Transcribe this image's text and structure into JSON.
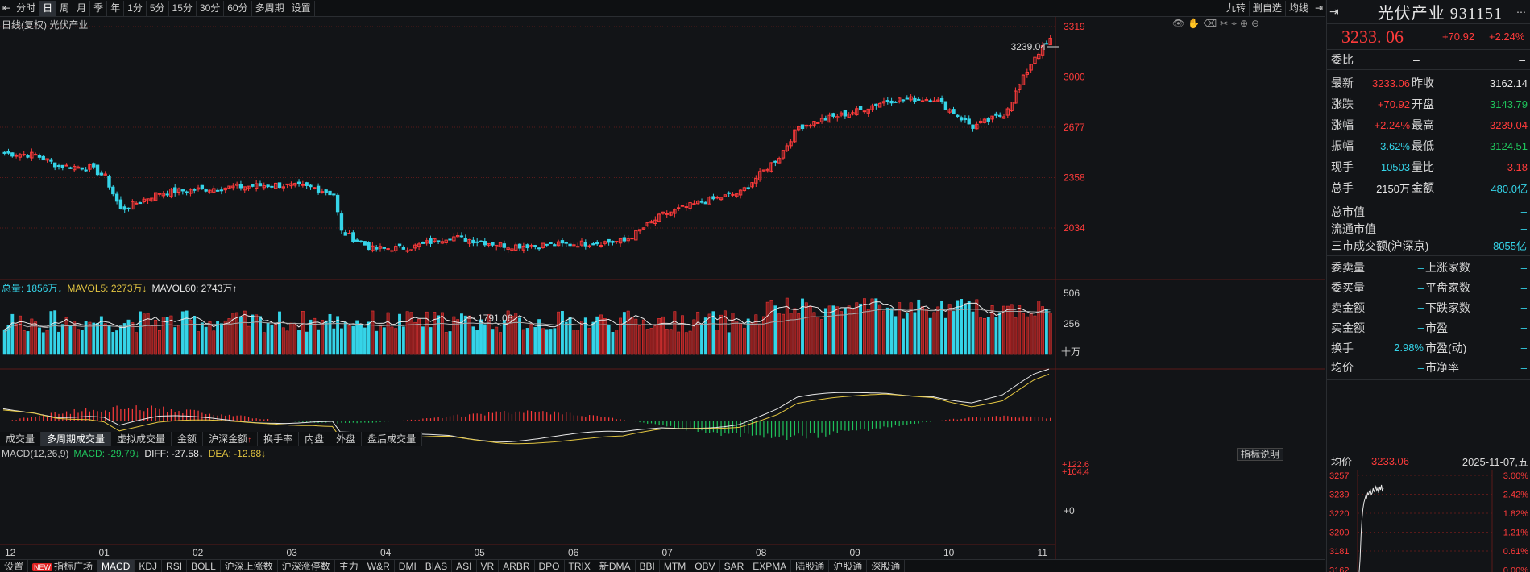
{
  "toolbar": {
    "periods": [
      "分时",
      "日",
      "周",
      "月",
      "季",
      "年",
      "1分",
      "5分",
      "15分",
      "30分",
      "60分",
      "多周期",
      "设置"
    ],
    "active_period": 1,
    "right_items": [
      "九转",
      "删自选",
      "均线"
    ]
  },
  "chart": {
    "title": "日线(复权)  光伏产业",
    "price_axis": [
      "3319",
      "3000",
      "2677",
      "2358",
      "2034"
    ],
    "high_label": "3239.04",
    "low_label": "1791.06",
    "month_labels": [
      "12",
      "01",
      "02",
      "03",
      "04",
      "05",
      "06",
      "07",
      "08",
      "09",
      "10",
      "11"
    ],
    "colors": {
      "up": "#ff3b3b",
      "down": "#35d4e8",
      "ma5": "#e8e8e8",
      "ma60": "#e2c541",
      "grid": "#5a1a1a"
    }
  },
  "volume": {
    "legend": [
      {
        "label": "总量: 1856万",
        "arrow": "↓",
        "color": "#35d4e8"
      },
      {
        "label": "MAVOL5: 2273万",
        "arrow": "↓",
        "color": "#e2c541"
      },
      {
        "label": "MAVOL60: 2743万",
        "arrow": "↑",
        "color": "#e8e8e8"
      }
    ],
    "axis": [
      "506",
      "256"
    ],
    "unit": "十万",
    "tabs": [
      "成交量",
      "多周期成交量",
      "虚拟成交量",
      "金额",
      "沪深金额",
      "换手率",
      "内盘",
      "外盘",
      "盘后成交量"
    ],
    "active_tab": 1,
    "tab_marker": "↑"
  },
  "macd": {
    "legend": [
      {
        "label": "MACD(12,26,9)",
        "color": "#c8c8c8"
      },
      {
        "label": "MACD: -29.79",
        "arrow": "↓",
        "color": "#1fc45c"
      },
      {
        "label": "DIFF: -27.58",
        "arrow": "↓",
        "color": "#e8e8e8"
      },
      {
        "label": "DEA: -12.68",
        "arrow": "↓",
        "color": "#e2c541"
      }
    ],
    "axis": [
      "122.6",
      "104.4",
      "0"
    ],
    "indicator_button": "指标说明"
  },
  "bottom_tabs": [
    "设置",
    "指标广场",
    "MACD",
    "KDJ",
    "RSI",
    "BOLL",
    "沪深上涨数",
    "沪深涨停数",
    "主力",
    "W&R",
    "DMI",
    "BIAS",
    "ASI",
    "VR",
    "ARBR",
    "DPO",
    "TRIX",
    "新DMA",
    "BBI",
    "MTM",
    "OBV",
    "SAR",
    "EXPMA",
    "陆股通",
    "沪股通",
    "深股通"
  ],
  "bottom_active": 2,
  "new_badge": "NEW",
  "panel": {
    "name": "光伏产业 931151",
    "last": "3233. 06",
    "change": "+70.92",
    "change_pct": "+2.24%",
    "weibi": {
      "k": "委比",
      "v": "–",
      "v2": "–"
    },
    "rows": [
      {
        "k": "最新",
        "v": "3233.06",
        "vc": "red",
        "k2": "昨收",
        "v2": "3162.14",
        "v2c": "white"
      },
      {
        "k": "涨跌",
        "v": "+70.92",
        "vc": "red",
        "k2": "开盘",
        "v2": "3143.79",
        "v2c": "green"
      },
      {
        "k": "涨幅",
        "v": "+2.24%",
        "vc": "red",
        "k2": "最高",
        "v2": "3239.04",
        "v2c": "red"
      },
      {
        "k": "振幅",
        "v": "3.62%",
        "vc": "cyan",
        "k2": "最低",
        "v2": "3124.51",
        "v2c": "green"
      },
      {
        "k": "现手",
        "v": "10503",
        "vc": "cyan",
        "k2": "量比",
        "v2": "3.18",
        "v2c": "red"
      },
      {
        "k": "总手",
        "v": "2150万",
        "vc": "white",
        "k2": "金额",
        "v2": "480.0亿",
        "v2c": "cyan"
      }
    ],
    "market": [
      {
        "k": "总市值",
        "v": "–"
      },
      {
        "k": "流通市值",
        "v": "–"
      },
      {
        "k": "三市成交额(沪深京)",
        "v": "8055亿"
      }
    ],
    "breadth": [
      {
        "k": "委卖量",
        "v": "–",
        "k2": "上涨家数",
        "v2": "–"
      },
      {
        "k": "委买量",
        "v": "–",
        "k2": "平盘家数",
        "v2": "–"
      },
      {
        "k": "卖金额",
        "v": "–",
        "k2": "下跌家数",
        "v2": "–"
      },
      {
        "k": "买金额",
        "v": "–",
        "k2": "市盈",
        "v2": "–"
      },
      {
        "k": "换手",
        "v": "2.98%",
        "k2": "市盈(动)",
        "v2": "–"
      },
      {
        "k": "均价",
        "v": "–",
        "k2": "市净率",
        "v2": "–"
      }
    ],
    "mini": {
      "price_label": "均价",
      "price": "3233.06",
      "date": "2025-11-07,五",
      "left_axis": [
        "3257",
        "3239",
        "3220",
        "3200",
        "3181",
        "3162"
      ],
      "right_axis": [
        "3.00%",
        "2.42%",
        "1.82%",
        "1.21%",
        "0.61%",
        "0.00%"
      ]
    }
  }
}
